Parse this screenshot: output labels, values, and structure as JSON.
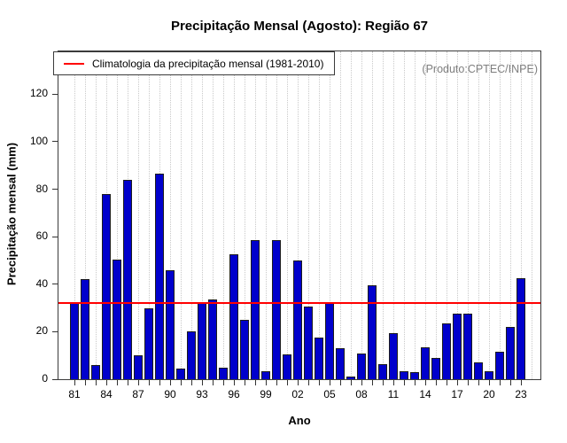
{
  "page": {
    "title": "Precipitação Mensal (Agosto): Região 67",
    "source_note": "(Produto:CPTEC/INPE)"
  },
  "legend": {
    "label": "Climatologia da precipitação mensal (1981-2010)"
  },
  "axes": {
    "x_title": "Ano",
    "y_title": "Precipitação mensal (mm)"
  },
  "chart_data": {
    "type": "bar",
    "title": "Precipitação Mensal (Agosto): Região 67",
    "xlabel": "Ano",
    "ylabel": "Precipitação mensal (mm)",
    "ylim": [
      0,
      138
    ],
    "y_ticks": [
      0,
      20,
      40,
      60,
      80,
      100,
      120
    ],
    "grid": "vertical-dotted",
    "legend_position": "top-left",
    "bar_color": "#0000cc",
    "reference_line": {
      "name": "Climatologia da precipitação mensal (1981-2010)",
      "value": 32.2,
      "color": "#ff0000"
    },
    "categories": [
      "1981",
      "1982",
      "1983",
      "1984",
      "1985",
      "1986",
      "1987",
      "1988",
      "1989",
      "1990",
      "1991",
      "1992",
      "1993",
      "1994",
      "1995",
      "1996",
      "1997",
      "1998",
      "1999",
      "2000",
      "2001",
      "2002",
      "2003",
      "2004",
      "2005",
      "2006",
      "2007",
      "2008",
      "2009",
      "2010",
      "2011",
      "2012",
      "2013",
      "2014",
      "2015",
      "2016",
      "2017",
      "2018",
      "2019",
      "2020",
      "2021",
      "2022",
      "2023"
    ],
    "values": [
      32,
      42,
      6,
      78,
      50.5,
      84,
      10,
      30,
      86.5,
      46,
      4.5,
      20,
      32,
      33.5,
      5,
      52.5,
      25,
      58.5,
      3.5,
      58.5,
      10.5,
      50,
      30.5,
      17.5,
      32,
      13,
      1,
      11,
      39.5,
      6.5,
      19.5,
      3.5,
      3,
      13.5,
      9,
      23.5,
      27.5,
      27.5,
      7,
      3.5,
      11.5,
      22,
      42.5
    ],
    "x_tick_label_every": 3,
    "x_tick_labels": [
      "81",
      "84",
      "87",
      "90",
      "93",
      "96",
      "99",
      "02",
      "05",
      "08",
      "11",
      "14",
      "17",
      "20",
      "23"
    ]
  }
}
